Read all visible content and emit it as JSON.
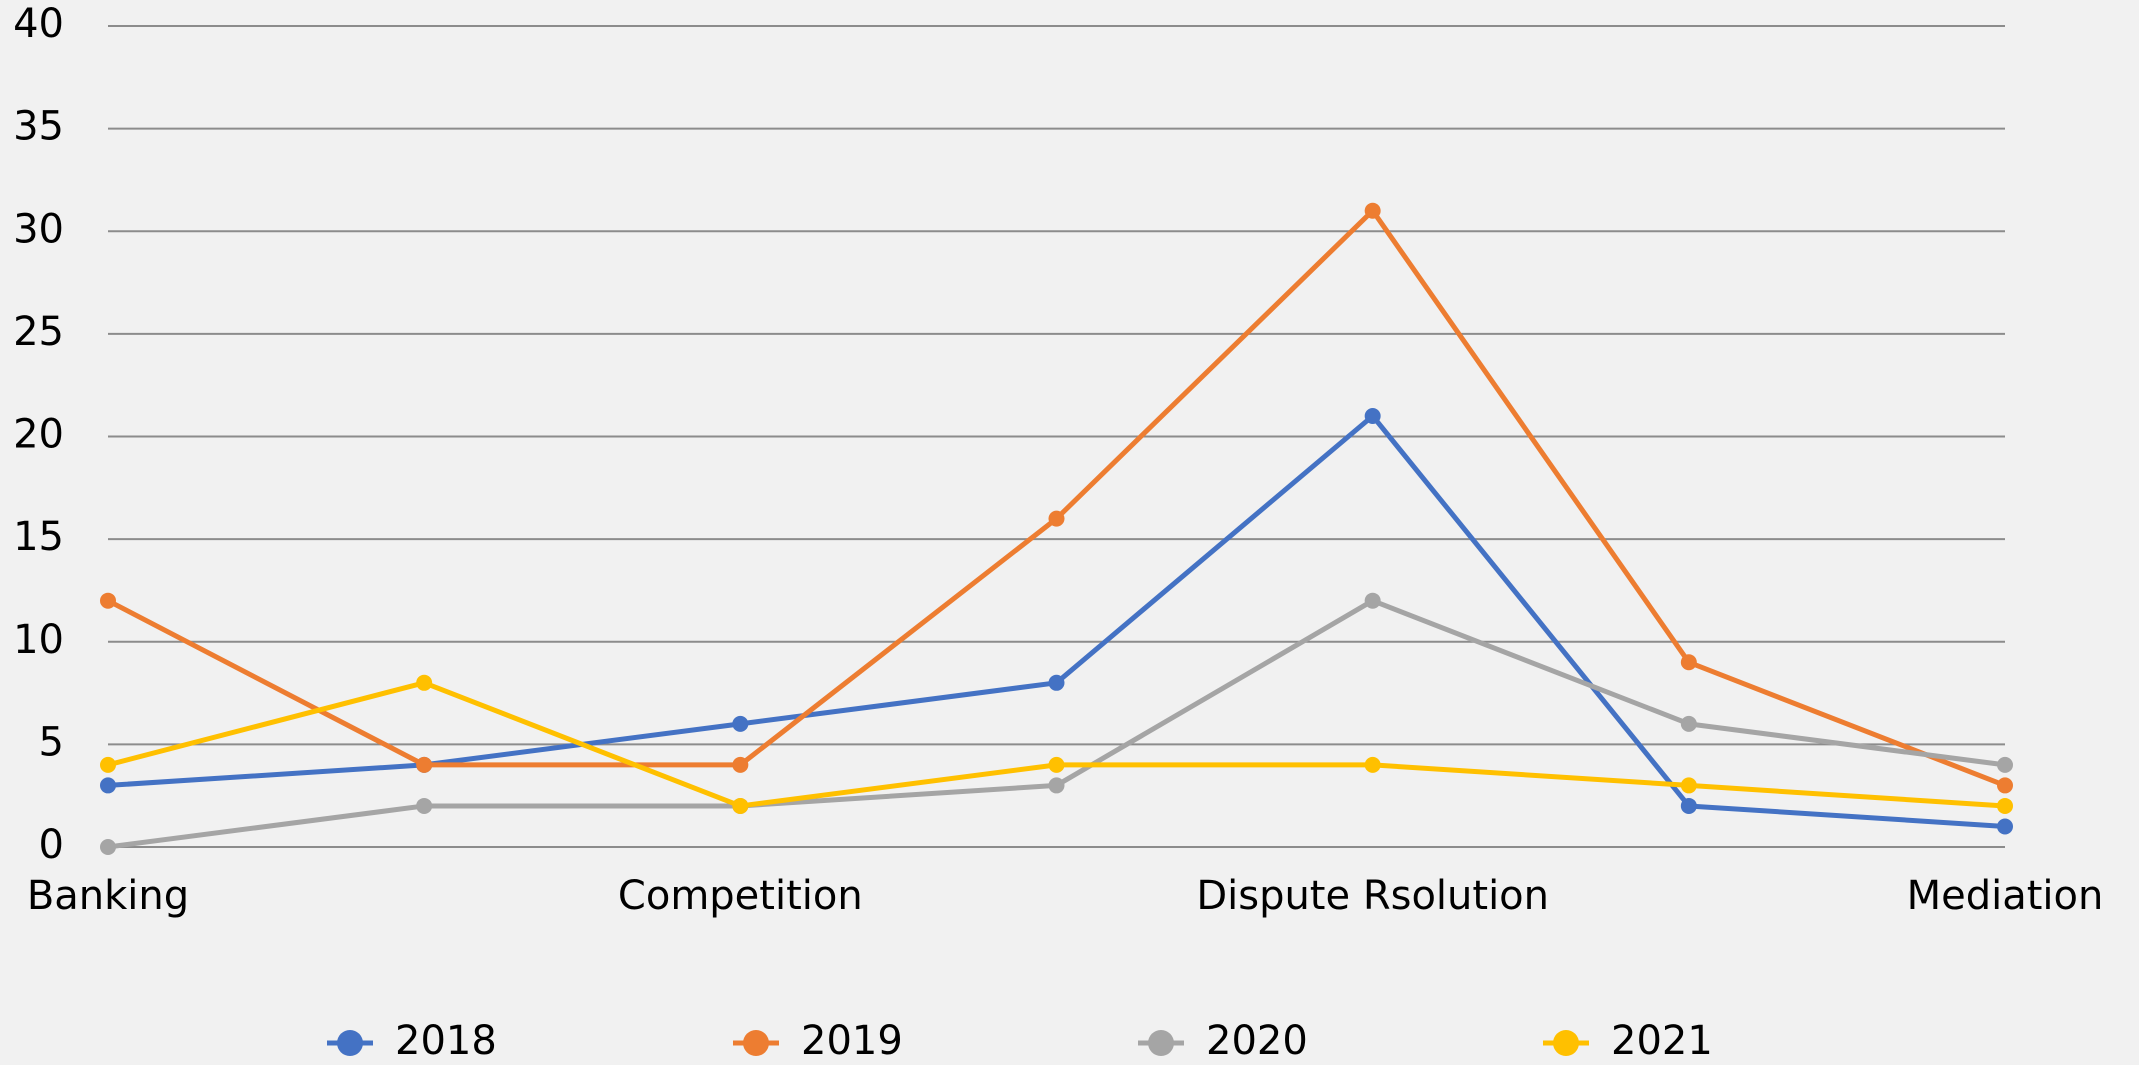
{
  "chart_data": {
    "type": "line",
    "categories": [
      "Banking",
      null,
      "Competition",
      null,
      "Dispute Rsolution",
      null,
      "Mediation"
    ],
    "series": [
      {
        "name": "2018",
        "color": "#4472c4",
        "values": [
          3,
          4,
          6,
          8,
          21,
          2,
          1
        ]
      },
      {
        "name": "2019",
        "color": "#ed7d31",
        "values": [
          12,
          4,
          4,
          16,
          31,
          9,
          3
        ]
      },
      {
        "name": "2020",
        "color": "#a5a5a5",
        "values": [
          0,
          2,
          2,
          3,
          12,
          6,
          4
        ]
      },
      {
        "name": "2021",
        "color": "#ffc000",
        "values": [
          4,
          8,
          2,
          4,
          4,
          3,
          2
        ]
      }
    ],
    "ylim": [
      0,
      40
    ],
    "yticks": [
      0,
      5,
      10,
      15,
      20,
      25,
      30,
      35,
      40
    ],
    "grid": true,
    "legend": "bottom"
  }
}
